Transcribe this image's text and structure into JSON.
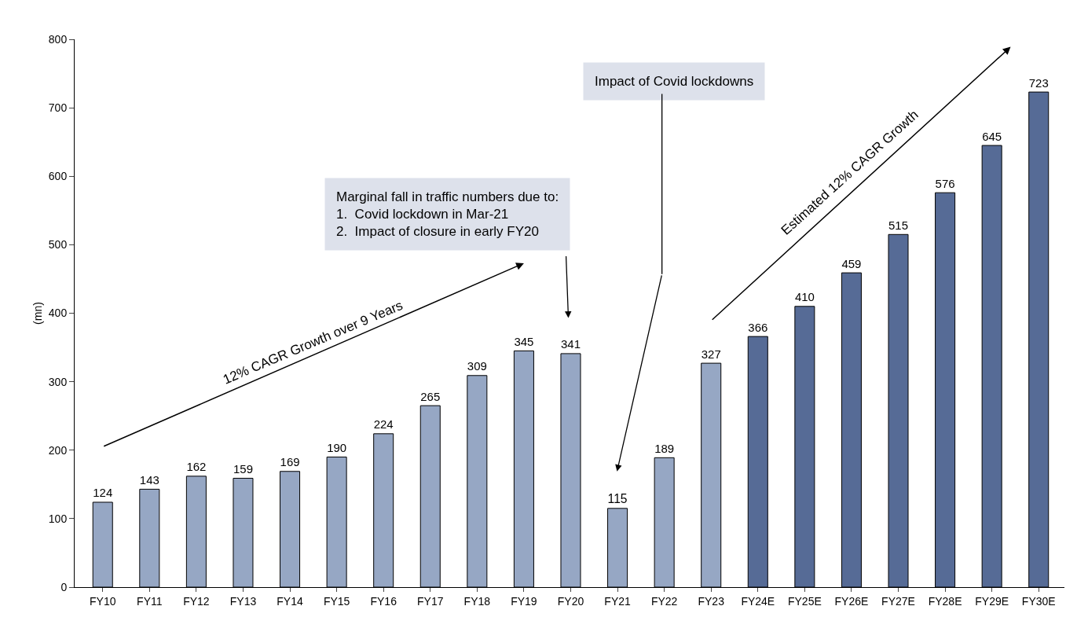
{
  "chart_data": {
    "type": "bar",
    "ylabel": "(mn)",
    "categories": [
      "FY10",
      "FY11",
      "FY12",
      "FY13",
      "FY14",
      "FY15",
      "FY16",
      "FY17",
      "FY18",
      "FY19",
      "FY20",
      "FY21",
      "FY22",
      "FY23",
      "FY24E",
      "FY25E",
      "FY26E",
      "FY27E",
      "FY28E",
      "FY29E",
      "FY30E"
    ],
    "values": [
      124,
      143,
      162,
      159,
      169,
      190,
      224,
      265,
      309,
      345,
      341,
      115,
      189,
      327,
      366,
      410,
      459,
      515,
      576,
      645,
      723
    ],
    "colors": [
      "#96a7c4",
      "#96a7c4",
      "#96a7c4",
      "#96a7c4",
      "#96a7c4",
      "#96a7c4",
      "#96a7c4",
      "#96a7c4",
      "#96a7c4",
      "#96a7c4",
      "#96a7c4",
      "#96a7c4",
      "#96a7c4",
      "#96a7c4",
      "#566b96",
      "#566b96",
      "#566b96",
      "#566b96",
      "#566b96",
      "#566b96",
      "#566b96"
    ],
    "ylim": [
      0,
      800
    ],
    "yticks": [
      0,
      100,
      200,
      300,
      400,
      500,
      600,
      700,
      800
    ],
    "data_labels": true,
    "annotations": [
      "Marginal fall in traffic numbers due to:\n1.  Covid lockdown in Mar-21\n2.  Impact of closure in early FY20",
      "Impact of Covid lockdowns",
      "12% CAGR Growth over 9 Years",
      "Estimated 12% CAGR Growth"
    ]
  }
}
